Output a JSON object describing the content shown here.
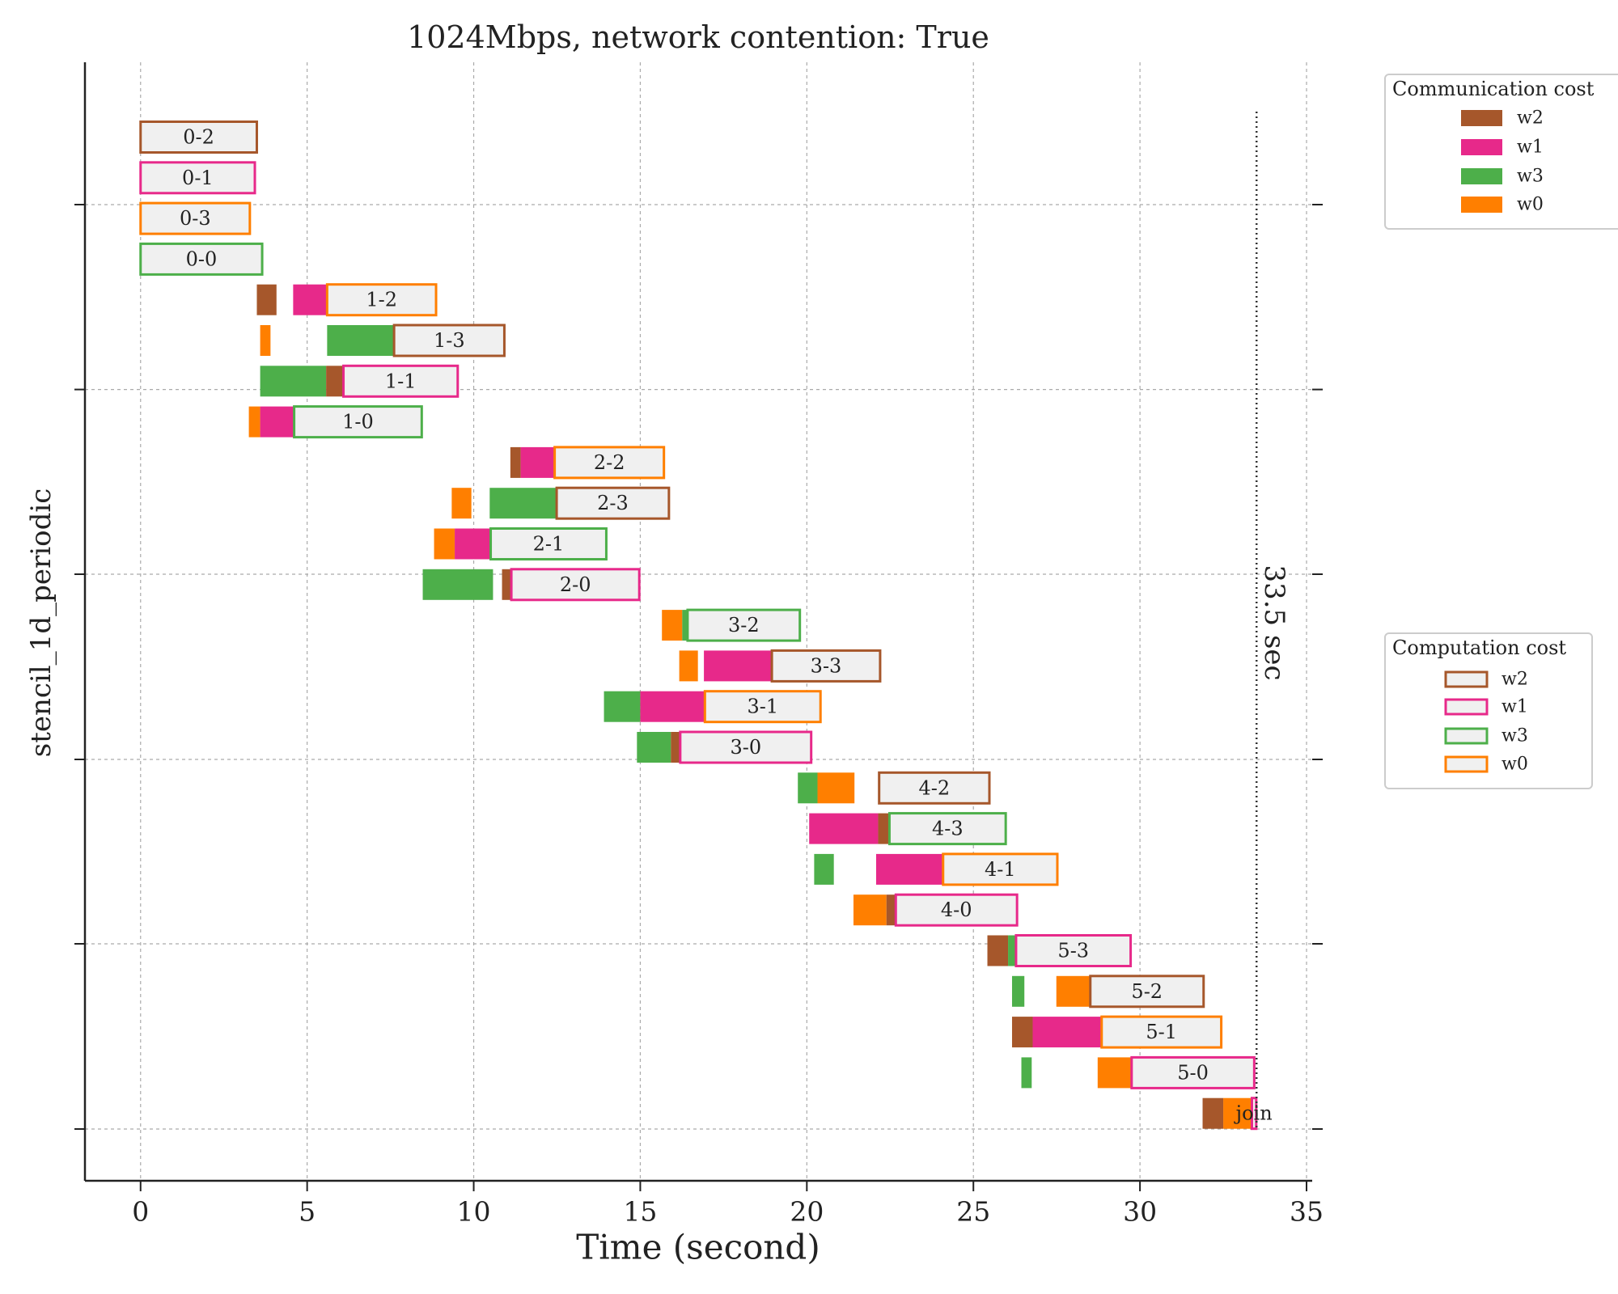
{
  "chart_data": {
    "type": "gantt",
    "title": "1024Mbps, network contention: True",
    "xlabel": "Time (second)",
    "ylabel": "stencil_1d_periodic",
    "xlim": [
      -1.67,
      35.17
    ],
    "xticks": [
      0,
      5,
      10,
      15,
      20,
      25,
      30,
      35
    ],
    "grid": true,
    "legends": [
      {
        "title": "Communication cost",
        "style": "filled",
        "entries": [
          {
            "name": "w2",
            "color": "#a6572b"
          },
          {
            "name": "w1",
            "color": "#e7298a"
          },
          {
            "name": "w3",
            "color": "#4daf4a"
          },
          {
            "name": "w0",
            "color": "#ff7f00"
          }
        ]
      },
      {
        "title": "Computation cost",
        "style": "outline",
        "entries": [
          {
            "name": "w2",
            "color": "#a6572b"
          },
          {
            "name": "w1",
            "color": "#e7298a"
          },
          {
            "name": "w3",
            "color": "#4daf4a"
          },
          {
            "name": "w0",
            "color": "#ff7f00"
          }
        ]
      }
    ],
    "annotation": {
      "value": 33.5,
      "label": "33.5 sec"
    },
    "rows": [
      {
        "label": "0-2",
        "comm": [],
        "comp": {
          "worker": "w2",
          "start": 0,
          "end": 3.49
        }
      },
      {
        "label": "0-1",
        "comm": [],
        "comp": {
          "worker": "w1",
          "start": 0,
          "end": 3.43
        }
      },
      {
        "label": "0-3",
        "comm": [],
        "comp": {
          "worker": "w0",
          "start": 0,
          "end": 3.28
        }
      },
      {
        "label": "0-0",
        "comm": [],
        "comp": {
          "worker": "w3",
          "start": 0,
          "end": 3.65
        }
      },
      {
        "label": "1-2",
        "comm": [
          {
            "worker": "w2",
            "start": 3.49,
            "end": 4.08
          },
          {
            "worker": "w1",
            "start": 4.58,
            "end": 5.6
          }
        ],
        "comp": {
          "worker": "w0",
          "start": 5.6,
          "end": 8.87
        }
      },
      {
        "label": "1-3",
        "comm": [
          {
            "worker": "w0",
            "start": 3.59,
            "end": 3.9
          },
          {
            "worker": "w3",
            "start": 5.6,
            "end": 7.61
          }
        ],
        "comp": {
          "worker": "w2",
          "start": 7.61,
          "end": 10.92
        }
      },
      {
        "label": "1-1",
        "comm": [
          {
            "worker": "w3",
            "start": 3.59,
            "end": 5.57
          },
          {
            "worker": "w2",
            "start": 5.57,
            "end": 6.09
          }
        ],
        "comp": {
          "worker": "w1",
          "start": 6.09,
          "end": 9.52
        }
      },
      {
        "label": "1-0",
        "comm": [
          {
            "worker": "w0",
            "start": 3.25,
            "end": 3.59
          },
          {
            "worker": "w1",
            "start": 3.59,
            "end": 4.61
          }
        ],
        "comp": {
          "worker": "w3",
          "start": 4.61,
          "end": 8.44
        }
      },
      {
        "label": "2-2",
        "comm": [
          {
            "worker": "w2",
            "start": 11.1,
            "end": 11.41
          },
          {
            "worker": "w1",
            "start": 11.41,
            "end": 12.43
          }
        ],
        "comp": {
          "worker": "w0",
          "start": 12.43,
          "end": 15.71
        }
      },
      {
        "label": "2-3",
        "comm": [
          {
            "worker": "w0",
            "start": 9.34,
            "end": 9.93
          },
          {
            "worker": "w3",
            "start": 10.48,
            "end": 12.49
          }
        ],
        "comp": {
          "worker": "w2",
          "start": 12.49,
          "end": 15.86
        }
      },
      {
        "label": "2-1",
        "comm": [
          {
            "worker": "w0",
            "start": 8.81,
            "end": 9.43
          },
          {
            "worker": "w1",
            "start": 9.43,
            "end": 10.51
          }
        ],
        "comp": {
          "worker": "w3",
          "start": 10.51,
          "end": 13.98
        }
      },
      {
        "label": "2-0",
        "comm": [
          {
            "worker": "w3",
            "start": 8.47,
            "end": 10.58
          },
          {
            "worker": "w2",
            "start": 10.85,
            "end": 11.13
          }
        ],
        "comp": {
          "worker": "w1",
          "start": 11.13,
          "end": 14.97
        }
      },
      {
        "label": "3-2",
        "comm": [
          {
            "worker": "w0",
            "start": 15.65,
            "end": 16.26
          },
          {
            "worker": "w3",
            "start": 16.26,
            "end": 16.42
          }
        ],
        "comp": {
          "worker": "w3",
          "start": 16.42,
          "end": 19.79
        }
      },
      {
        "label": "3-3",
        "comm": [
          {
            "worker": "w0",
            "start": 16.17,
            "end": 16.73
          },
          {
            "worker": "w1",
            "start": 16.91,
            "end": 18.95
          }
        ],
        "comp": {
          "worker": "w2",
          "start": 18.95,
          "end": 22.2
        }
      },
      {
        "label": "3-1",
        "comm": [
          {
            "worker": "w3",
            "start": 13.91,
            "end": 15.0
          },
          {
            "worker": "w1",
            "start": 15.0,
            "end": 16.94
          }
        ],
        "comp": {
          "worker": "w0",
          "start": 16.94,
          "end": 20.41
        }
      },
      {
        "label": "3-0",
        "comm": [
          {
            "worker": "w3",
            "start": 14.9,
            "end": 15.92
          },
          {
            "worker": "w2",
            "start": 15.92,
            "end": 16.2
          }
        ],
        "comp": {
          "worker": "w1",
          "start": 16.2,
          "end": 20.13
        }
      },
      {
        "label": "4-2",
        "comm": [
          {
            "worker": "w3",
            "start": 19.73,
            "end": 20.32
          },
          {
            "worker": "w0",
            "start": 20.32,
            "end": 21.43
          }
        ],
        "comp": {
          "worker": "w2",
          "start": 22.17,
          "end": 25.48
        }
      },
      {
        "label": "4-3",
        "comm": [
          {
            "worker": "w1",
            "start": 20.07,
            "end": 22.14
          },
          {
            "worker": "w2",
            "start": 22.14,
            "end": 22.48
          }
        ],
        "comp": {
          "worker": "w3",
          "start": 22.48,
          "end": 25.97
        }
      },
      {
        "label": "4-1",
        "comm": [
          {
            "worker": "w3",
            "start": 20.22,
            "end": 20.81
          },
          {
            "worker": "w1",
            "start": 22.08,
            "end": 24.09
          }
        ],
        "comp": {
          "worker": "w0",
          "start": 24.09,
          "end": 27.52
        }
      },
      {
        "label": "4-0",
        "comm": [
          {
            "worker": "w0",
            "start": 21.4,
            "end": 22.39
          },
          {
            "worker": "w2",
            "start": 22.39,
            "end": 22.67
          }
        ],
        "comp": {
          "worker": "w1",
          "start": 22.67,
          "end": 26.31
        }
      },
      {
        "label": "5-3",
        "comm": [
          {
            "worker": "w2",
            "start": 25.42,
            "end": 26.04
          },
          {
            "worker": "w3",
            "start": 26.04,
            "end": 26.28
          }
        ],
        "comp": {
          "worker": "w1",
          "start": 26.28,
          "end": 29.72
        }
      },
      {
        "label": "5-2",
        "comm": [
          {
            "worker": "w3",
            "start": 26.16,
            "end": 26.53
          },
          {
            "worker": "w0",
            "start": 27.49,
            "end": 28.51
          }
        ],
        "comp": {
          "worker": "w2",
          "start": 28.51,
          "end": 31.91
        }
      },
      {
        "label": "5-1",
        "comm": [
          {
            "worker": "w2",
            "start": 26.16,
            "end": 26.78
          },
          {
            "worker": "w1",
            "start": 26.78,
            "end": 28.85
          }
        ],
        "comp": {
          "worker": "w0",
          "start": 28.85,
          "end": 32.44
        }
      },
      {
        "label": "5-0",
        "comm": [
          {
            "worker": "w3",
            "start": 26.44,
            "end": 26.75
          },
          {
            "worker": "w0",
            "start": 28.73,
            "end": 29.75
          }
        ],
        "comp": {
          "worker": "w1",
          "start": 29.75,
          "end": 33.43
        }
      },
      {
        "label": "join",
        "comm": [
          {
            "worker": "w2",
            "start": 31.88,
            "end": 32.5
          },
          {
            "worker": "w0",
            "start": 32.5,
            "end": 33.36
          }
        ],
        "comp": {
          "worker": "w1",
          "start": 33.36,
          "end": 33.49
        }
      }
    ]
  }
}
